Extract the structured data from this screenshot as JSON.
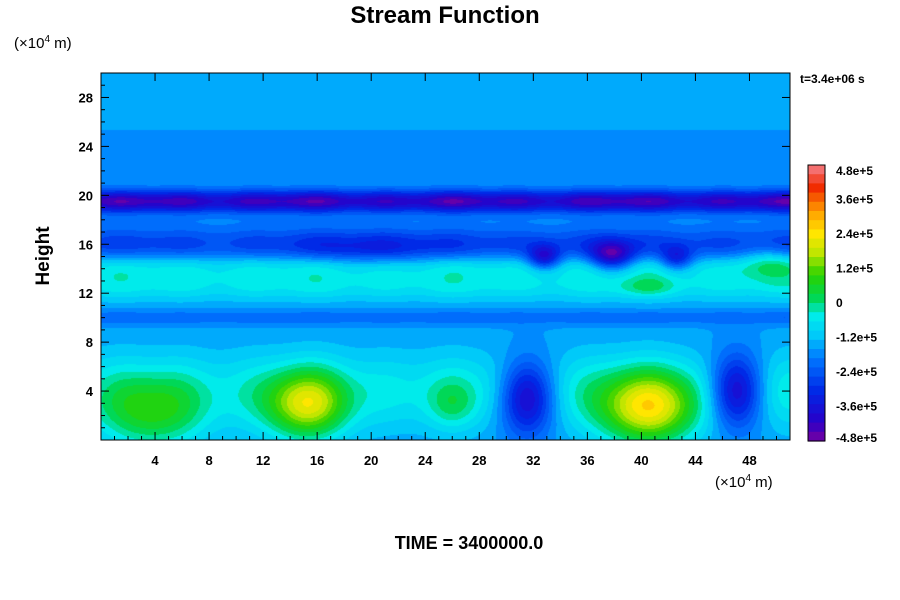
{
  "chart_data": {
    "type": "heatmap",
    "subtype": "filled-contour",
    "title": "Stream Function",
    "ylabel": "Height",
    "xlabel": "",
    "x_unit": "(×10⁴ m)",
    "y_unit": "(×10⁴ m)",
    "time_label": "t=3.4e+06 s",
    "footer": "TIME = 3400000.0",
    "xlim": [
      0,
      51
    ],
    "ylim": [
      0,
      30
    ],
    "x_ticks": [
      4,
      8,
      12,
      16,
      20,
      24,
      28,
      32,
      36,
      40,
      44,
      48
    ],
    "x_tick_labels": [
      "4",
      "8",
      "12",
      "16",
      "20",
      "24",
      "28",
      "32",
      "36",
      "40",
      "44",
      "48"
    ],
    "y_ticks": [
      4,
      8,
      12,
      16,
      20,
      24,
      28
    ],
    "y_tick_labels": [
      "4",
      "8",
      "12",
      "16",
      "20",
      "24",
      "28"
    ],
    "colorbar": {
      "range": [
        -480000,
        480000
      ],
      "tick_values": [
        480000,
        360000,
        240000,
        120000,
        0,
        -120000,
        -240000,
        -360000,
        -480000
      ],
      "tick_labels": [
        "4.8e+5",
        "3.6e+5",
        "2.4e+5",
        "1.2e+5",
        "0",
        "-1.2e+5",
        "-2.4e+5",
        "-3.6e+5",
        "-4.8e+5"
      ],
      "levels": 30
    },
    "background_value": -160000,
    "features": [
      {
        "kind": "band",
        "y": 19.5,
        "half_width": 0.9,
        "amplitude": -260000
      },
      {
        "kind": "band",
        "y": 15.8,
        "half_width": 1.6,
        "amplitude": -120000
      },
      {
        "kind": "band",
        "y": 14.2,
        "half_width": 1.2,
        "amplitude": 120000
      },
      {
        "kind": "band",
        "y": 12.5,
        "half_width": 1.2,
        "amplitude": 90000
      },
      {
        "kind": "band",
        "y": 10.0,
        "half_width": 0.6,
        "amplitude": -60000
      },
      {
        "kind": "band",
        "y": 4.0,
        "half_width": 3.2,
        "amplitude": 110000
      },
      {
        "kind": "blob",
        "x": 3.8,
        "y": 2.0,
        "rx": 3.8,
        "ry": 3.0,
        "amplitude": 170000
      },
      {
        "kind": "blob",
        "x": 15.2,
        "y": 2.8,
        "rx": 3.0,
        "ry": 2.8,
        "amplitude": 280000
      },
      {
        "kind": "blob",
        "x": 26.0,
        "y": 2.8,
        "rx": 1.8,
        "ry": 2.0,
        "amplitude": 80000
      },
      {
        "kind": "blob",
        "x": 31.5,
        "y": 3.5,
        "rx": 2.0,
        "ry": 3.0,
        "amplitude": -320000
      },
      {
        "kind": "blob",
        "x": 40.5,
        "y": 2.5,
        "rx": 3.6,
        "ry": 3.0,
        "amplitude": 320000
      },
      {
        "kind": "blob",
        "x": 47.0,
        "y": 4.0,
        "rx": 2.0,
        "ry": 3.0,
        "amplitude": -320000
      },
      {
        "kind": "blob",
        "x": 32.8,
        "y": 14.9,
        "rx": 1.2,
        "ry": 1.0,
        "amplitude": -220000
      },
      {
        "kind": "blob",
        "x": 37.8,
        "y": 15.0,
        "rx": 1.6,
        "ry": 1.2,
        "amplitude": -260000
      },
      {
        "kind": "blob",
        "x": 42.6,
        "y": 14.8,
        "rx": 1.2,
        "ry": 1.0,
        "amplitude": -180000
      },
      {
        "kind": "blob",
        "x": 20.0,
        "y": 15.6,
        "rx": 5.0,
        "ry": 1.3,
        "amplitude": -80000
      },
      {
        "kind": "blob",
        "x": 49.5,
        "y": 14.6,
        "rx": 2.0,
        "ry": 1.3,
        "amplitude": 90000
      },
      {
        "kind": "blob",
        "x": 40.5,
        "y": 12.5,
        "rx": 2.0,
        "ry": 0.8,
        "amplitude": 70000
      }
    ]
  }
}
